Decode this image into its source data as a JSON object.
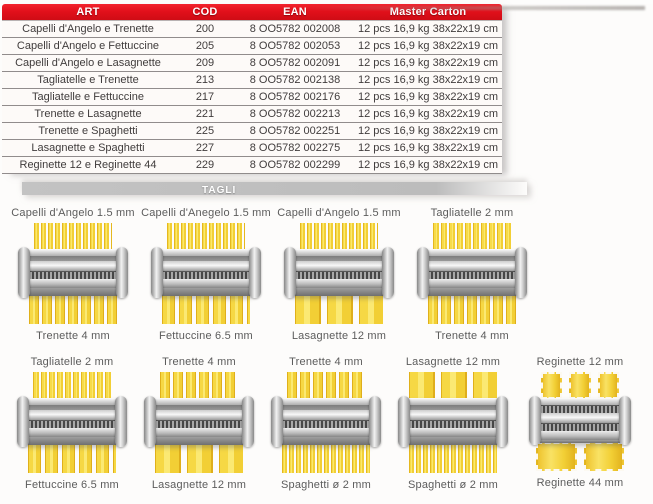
{
  "table": {
    "headers": [
      "ART",
      "COD",
      "EAN",
      "Master Carton"
    ],
    "rows": [
      [
        "Capelli d'Angelo e Trenette",
        "200",
        "8 OO5782 002008",
        "12 pcs 16,9 kg 38x22x19 cm"
      ],
      [
        "Capelli d'Angelo e Fettuccine",
        "205",
        "8 OO5782 002053",
        "12 pcs 16,9 kg 38x22x19 cm"
      ],
      [
        "Capelli d'Angelo e Lasagnette",
        "209",
        "8 OO5782 002091",
        "12 pcs 16,9 kg 38x22x19 cm"
      ],
      [
        "Tagliatelle e Trenette",
        "213",
        "8 OO5782 002138",
        "12 pcs 16,9 kg 38x22x19 cm"
      ],
      [
        "Tagliatelle e Fettuccine",
        "217",
        "8 OO5782 002176",
        "12 pcs 16,9 kg 38x22x19 cm"
      ],
      [
        "Trenette e Lasagnette",
        "221",
        "8 OO5782 002213",
        "12 pcs 16,9 kg 38x22x19 cm"
      ],
      [
        "Trenette e Spaghetti",
        "225",
        "8 OO5782 002251",
        "12 pcs 16,9 kg 38x22x19 cm"
      ],
      [
        "Lasagnette e Spaghetti",
        "227",
        "8 OO5782 002275",
        "12 pcs 16,9 kg 38x22x19 cm"
      ],
      [
        "Reginette 12 e Reginette 44",
        "229",
        "8 OO5782 002299",
        "12 pcs 16,9 kg 38x22x19 cm"
      ]
    ]
  },
  "banner": {
    "label": "TAGLI"
  },
  "cutters": {
    "row1": [
      {
        "top": "Capelli d'Angelo 1.5 mm",
        "bottom": "Trenette 4 mm"
      },
      {
        "top": "Capelli d'Anegelo 1.5 mm",
        "bottom": "Fettuccine 6.5 mm"
      },
      {
        "top": "Capelli d'Angelo 1.5 mm",
        "bottom": "Lasagnette 12 mm"
      },
      {
        "top": "Tagliatelle 2 mm",
        "bottom": "Trenette 4 mm"
      }
    ],
    "row2": [
      {
        "top": "Tagliatelle 2 mm",
        "bottom": "Fettuccine 6.5 mm"
      },
      {
        "top": "Trenette 4 mm",
        "bottom": "Lasagnette 12 mm"
      },
      {
        "top": "Trenette 4 mm",
        "bottom": "Spaghetti ø 2 mm"
      },
      {
        "top": "Lasagnette 12 mm",
        "bottom": "Spaghetti ø 2 mm"
      },
      {
        "top": "Reginette 12 mm",
        "bottom": "Reginette 44 mm"
      }
    ]
  },
  "colors": {
    "header_red": "#e2101b",
    "pasta_yellow": "#f2cf35",
    "banner_gray": "#bcbcbc"
  }
}
